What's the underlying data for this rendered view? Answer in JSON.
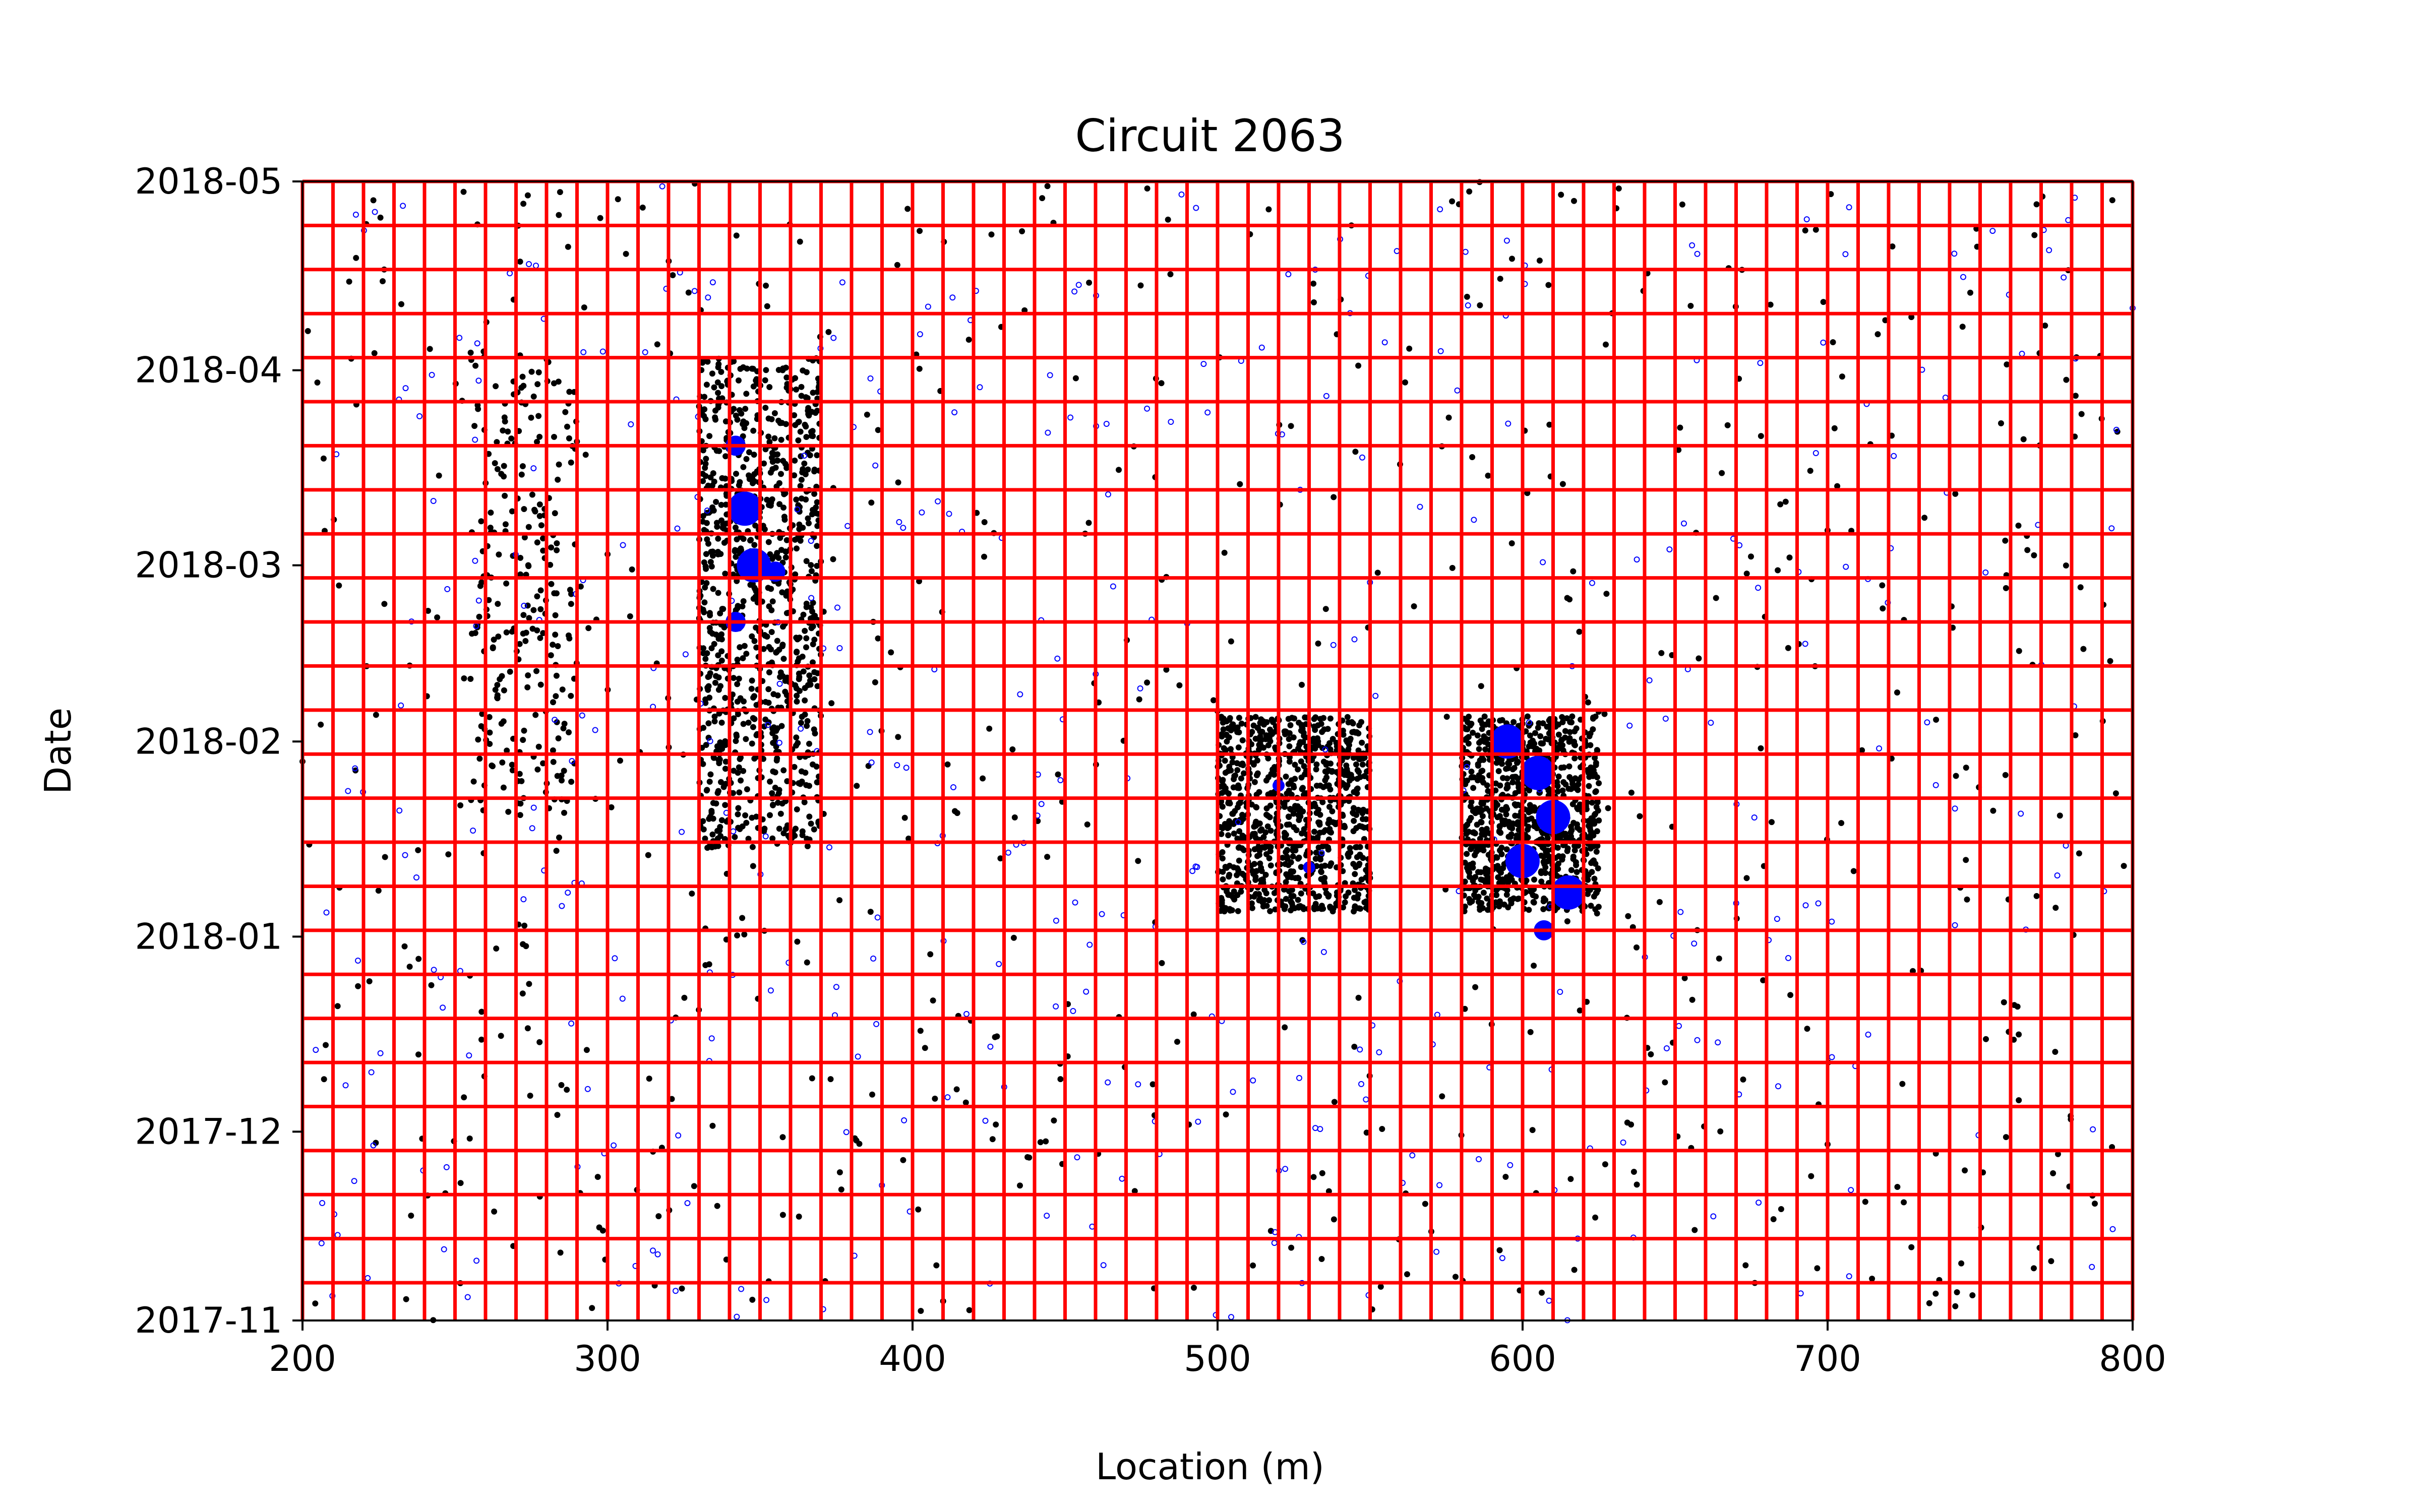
{
  "chart_data": {
    "type": "scatter",
    "title": "Circuit 2063",
    "xlabel": "Location (m)",
    "ylabel": "Date",
    "xlim": [
      200,
      800
    ],
    "ylim": [
      "2017-11-01",
      "2018-05-01"
    ],
    "x_ticks": [
      "200",
      "300",
      "400",
      "500",
      "600",
      "700",
      "800"
    ],
    "y_ticks": [
      "2017-11",
      "2017-12",
      "2018-01",
      "2018-02",
      "2018-03",
      "2018-04",
      "2018-05"
    ],
    "grid": false,
    "overlay": {
      "description_label": "",
      "color": "#ff0000",
      "x_step_m": 10,
      "y_step_days": 7
    },
    "series": [
      {
        "marker_color": "#000000",
        "marker": "dot",
        "clusters": [
          {
            "x_range": [
              255,
              290
            ],
            "date_range": [
              "2018-01-20",
              "2018-04-05"
            ],
            "density": "medium"
          },
          {
            "x_range": [
              330,
              370
            ],
            "date_range": [
              "2018-01-15",
              "2018-04-03"
            ],
            "density": "high"
          },
          {
            "x_range": [
              500,
              550
            ],
            "date_range": [
              "2018-01-05",
              "2018-02-05"
            ],
            "density": "high"
          },
          {
            "x_range": [
              580,
              625
            ],
            "date_range": [
              "2018-01-05",
              "2018-02-05"
            ],
            "density": "high"
          },
          {
            "x_range": [
              200,
              800
            ],
            "date_range": [
              "2017-11-01",
              "2018-05-01"
            ],
            "density": "sparse"
          }
        ]
      },
      {
        "marker_color": "#0000ff",
        "marker": "circle",
        "points": [
          {
            "x": 342,
            "date": "2018-03-20",
            "size": "medium"
          },
          {
            "x": 345,
            "date": "2018-03-10",
            "size": "large"
          },
          {
            "x": 348,
            "date": "2018-03-01",
            "size": "large"
          },
          {
            "x": 355,
            "date": "2018-02-28",
            "size": "medium"
          },
          {
            "x": 342,
            "date": "2018-02-20",
            "size": "medium"
          },
          {
            "x": 520,
            "date": "2018-01-25",
            "size": "small"
          },
          {
            "x": 530,
            "date": "2018-01-12",
            "size": "small"
          },
          {
            "x": 595,
            "date": "2018-02-01",
            "size": "large"
          },
          {
            "x": 605,
            "date": "2018-01-27",
            "size": "large"
          },
          {
            "x": 610,
            "date": "2018-01-20",
            "size": "large"
          },
          {
            "x": 600,
            "date": "2018-01-13",
            "size": "large"
          },
          {
            "x": 615,
            "date": "2018-01-08",
            "size": "large"
          },
          {
            "x": 607,
            "date": "2018-01-02",
            "size": "medium"
          }
        ]
      }
    ]
  }
}
